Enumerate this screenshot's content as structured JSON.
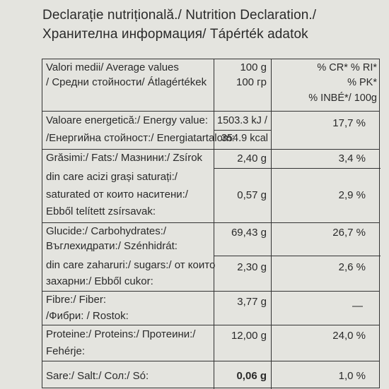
{
  "title_line1": "Declarație nutrițională./ Nutrition Declaration./",
  "title_line2": "Хранителна информация/ Tápérték adatok",
  "header": {
    "label_line1": "Valori medii/ Average values",
    "label_line2": "/ Средни стойности/ Átlagértékek",
    "amount_line1": "100 g",
    "amount_line2": "100 гр",
    "pct_line1": "% CR* % RI*",
    "pct_line2": "% PK*",
    "pct_line3": "% INBÉ*/ 100g"
  },
  "energy": {
    "label_line1": "Valoare energetică:/ Energy value:",
    "label_line2": "/Енергийна стойност:/ Energiatartalom:",
    "kj": "1503.3  kJ /",
    "kcal": "354.9 kcal",
    "pct": "17,7 %"
  },
  "fat": {
    "label": "Grăsimi:/ Fats:/ Мазнини:/ Zsírok",
    "value": "2,40 g",
    "pct": "3,4  %"
  },
  "saturates": {
    "label_line1": "din care acizi grași saturați:/",
    "label_line2": "saturated от които наситени:/",
    "label_line3": "Ebből telített zsírsavak:",
    "value": "0,57 g",
    "pct": "2,9  %"
  },
  "carbs": {
    "label_line1": "Glucide:/ Carbohydrates:/",
    "label_line2": "Въглехидрати:/ Szénhidrát:",
    "value": "69,43  g",
    "pct": "26,7 %"
  },
  "sugars": {
    "label_line1": "din care zaharuri:/ sugars:/ от които",
    "label_line2": "захарни:/ Ebből cukor:",
    "value": "2,30 g",
    "pct": "2,6 %"
  },
  "fibre": {
    "label_line1": "Fibre:/ Fiber:",
    "label_line2": "/Фибри: / Rostok:",
    "value": "3,77 g",
    "pct": "—"
  },
  "protein": {
    "label_line1": "Proteine:/ Proteins:/ Протеини:/",
    "label_line2": "Fehérje:",
    "value": "12,00 g",
    "pct": "24,0 %"
  },
  "salt": {
    "label": "Sare:/ Salt:/ Сол:/ Só:",
    "value": "0,06 g",
    "pct": "1,0  %"
  }
}
